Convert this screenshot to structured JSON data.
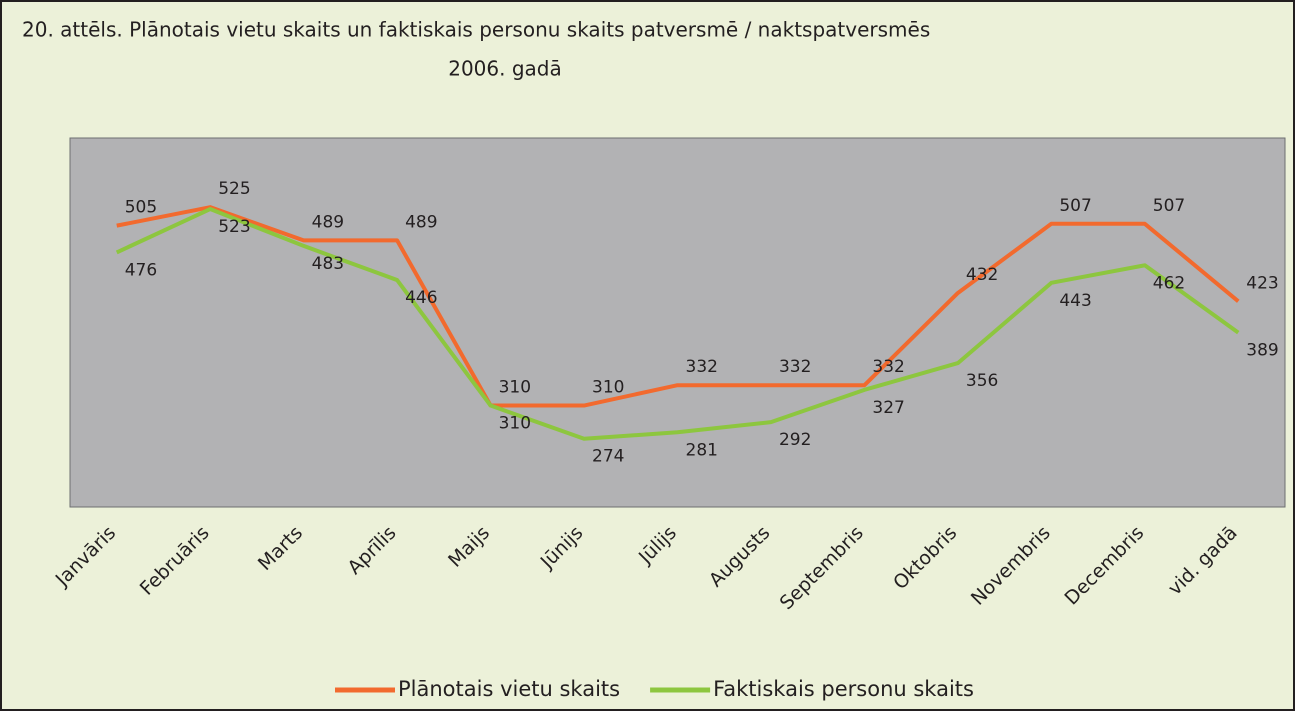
{
  "chart_data": {
    "type": "line",
    "title": "20. attēls. Plānotais vietu skaits un faktiskais personu skaits patversmē / naktspatversmēs",
    "subtitle": "2006. gadā",
    "categories": [
      "Janvāris",
      "Februāris",
      "Marts",
      "Aprīlis",
      "Maijs",
      "Jūnijs",
      "Jūlijs",
      "Augusts",
      "Septembris",
      "Oktobris",
      "Novembris",
      "Decembris",
      "vid. gadā"
    ],
    "series": [
      {
        "name": "Plānotais vietu skaits",
        "color": "#f26a2e",
        "values": [
          505,
          525,
          489,
          489,
          310,
          310,
          332,
          332,
          332,
          432,
          507,
          507,
          423
        ]
      },
      {
        "name": "Faktiskais personu skaits",
        "color": "#8dc63f",
        "values": [
          476,
          523,
          483,
          446,
          310,
          274,
          281,
          292,
          327,
          356,
          443,
          462,
          389
        ]
      }
    ],
    "ylim": [
      200,
      600
    ],
    "legend": "bottom"
  }
}
